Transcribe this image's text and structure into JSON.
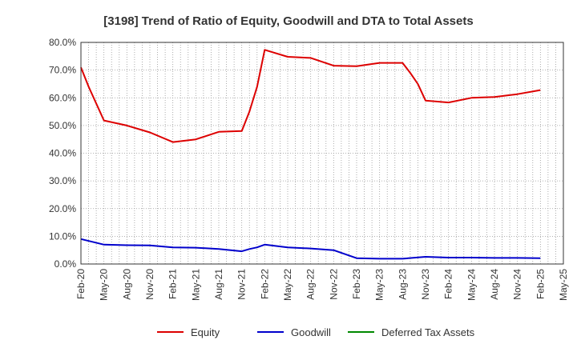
{
  "chart_data": {
    "type": "line",
    "title": "[3198]  Trend of Ratio of Equity, Goodwill and DTA to Total Assets",
    "xlabel": "",
    "ylabel": "",
    "ylim": [
      0,
      80
    ],
    "y_ticks": [
      "0.0%",
      "10.0%",
      "20.0%",
      "30.0%",
      "40.0%",
      "50.0%",
      "60.0%",
      "70.0%",
      "80.0%"
    ],
    "x_ticks": [
      "Feb-20",
      "May-20",
      "Aug-20",
      "Nov-20",
      "Feb-21",
      "May-21",
      "Aug-21",
      "Nov-21",
      "Feb-22",
      "May-22",
      "Aug-22",
      "Nov-22",
      "Feb-23",
      "May-23",
      "Aug-23",
      "Nov-23",
      "Feb-24",
      "May-24",
      "Aug-24",
      "Nov-24",
      "Feb-25",
      "May-25"
    ],
    "grid": true,
    "legend_position": "bottom",
    "series": [
      {
        "name": "Equity",
        "color": "#dd0000",
        "points": [
          [
            "2020-02",
            71.0
          ],
          [
            "2020-03",
            64.0
          ],
          [
            "2020-05",
            51.8
          ],
          [
            "2020-08",
            50.0
          ],
          [
            "2020-11",
            47.5
          ],
          [
            "2021-02",
            44.0
          ],
          [
            "2021-05",
            45.0
          ],
          [
            "2021-08",
            47.7
          ],
          [
            "2021-11",
            48.0
          ],
          [
            "2021-12",
            55.0
          ],
          [
            "2022-01",
            64.0
          ],
          [
            "2022-02",
            77.3
          ],
          [
            "2022-05",
            74.8
          ],
          [
            "2022-08",
            74.4
          ],
          [
            "2022-11",
            71.6
          ],
          [
            "2023-02",
            71.4
          ],
          [
            "2023-05",
            72.6
          ],
          [
            "2023-08",
            72.6
          ],
          [
            "2023-09",
            69.0
          ],
          [
            "2023-10",
            65.0
          ],
          [
            "2023-11",
            59.0
          ],
          [
            "2024-02",
            58.3
          ],
          [
            "2024-05",
            60.0
          ],
          [
            "2024-08",
            60.3
          ],
          [
            "2024-11",
            61.3
          ],
          [
            "2025-02",
            62.8
          ]
        ]
      },
      {
        "name": "Goodwill",
        "color": "#0000cc",
        "points": [
          [
            "2020-02",
            9.0
          ],
          [
            "2020-05",
            7.0
          ],
          [
            "2020-08",
            6.8
          ],
          [
            "2020-11",
            6.7
          ],
          [
            "2021-02",
            6.0
          ],
          [
            "2021-05",
            5.9
          ],
          [
            "2021-08",
            5.4
          ],
          [
            "2021-11",
            4.6
          ],
          [
            "2021-12",
            5.4
          ],
          [
            "2022-01",
            6.0
          ],
          [
            "2022-02",
            7.0
          ],
          [
            "2022-05",
            6.0
          ],
          [
            "2022-08",
            5.6
          ],
          [
            "2022-11",
            5.0
          ],
          [
            "2023-02",
            2.1
          ],
          [
            "2023-05",
            1.9
          ],
          [
            "2023-08",
            1.9
          ],
          [
            "2023-11",
            2.6
          ],
          [
            "2024-02",
            2.3
          ],
          [
            "2024-05",
            2.3
          ],
          [
            "2024-08",
            2.2
          ],
          [
            "2024-11",
            2.2
          ],
          [
            "2025-02",
            2.1
          ]
        ]
      },
      {
        "name": "Deferred Tax Assets",
        "color": "#008800",
        "points": []
      }
    ]
  }
}
